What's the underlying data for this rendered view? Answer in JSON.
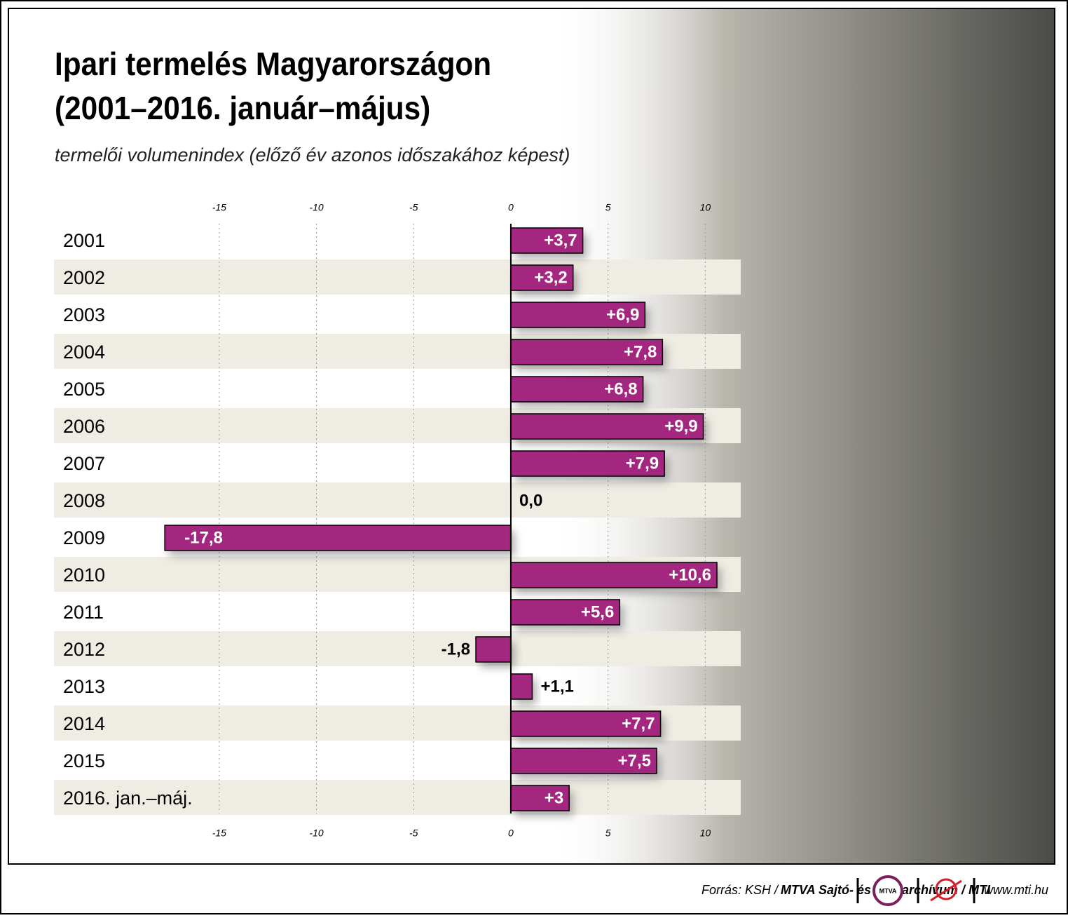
{
  "chart_data": {
    "type": "bar",
    "orientation": "horizontal",
    "title": [
      "Ipari termelés Magyarországon",
      "(2001–2016. január–május)"
    ],
    "subtitle": "termelői volumenindex (előző év azonos időszakához képest)",
    "categories": [
      "2001",
      "2002",
      "2003",
      "2004",
      "2005",
      "2006",
      "2007",
      "2008",
      "2009",
      "2010",
      "2011",
      "2012",
      "2013",
      "2014",
      "2015",
      "2016. jan.–máj."
    ],
    "values": [
      3.7,
      3.2,
      6.9,
      7.8,
      6.8,
      9.9,
      7.9,
      0.0,
      -17.8,
      10.6,
      5.6,
      -1.8,
      1.1,
      7.7,
      7.5,
      3
    ],
    "value_labels": [
      "+3,7",
      "+3,2",
      "+6,9",
      "+7,8",
      "+6,8",
      "+9,9",
      "+7,9",
      "0,0",
      "-17,8",
      "+10,6",
      "+5,6",
      "-1,8",
      "+1,1",
      "+7,7",
      "+7,5",
      "+3"
    ],
    "color": "#a3267f",
    "xlim": [
      -23.5,
      11.5
    ],
    "xticks": [
      -15,
      -10,
      -5,
      0,
      5,
      10
    ],
    "grid": true
  },
  "footer": {
    "source": "Forrás: KSH /",
    "source_bold": "MTVA Sajtó- és Fotóarchívum / MTI",
    "logo": "MTVA",
    "website": "www.mti.hu"
  }
}
